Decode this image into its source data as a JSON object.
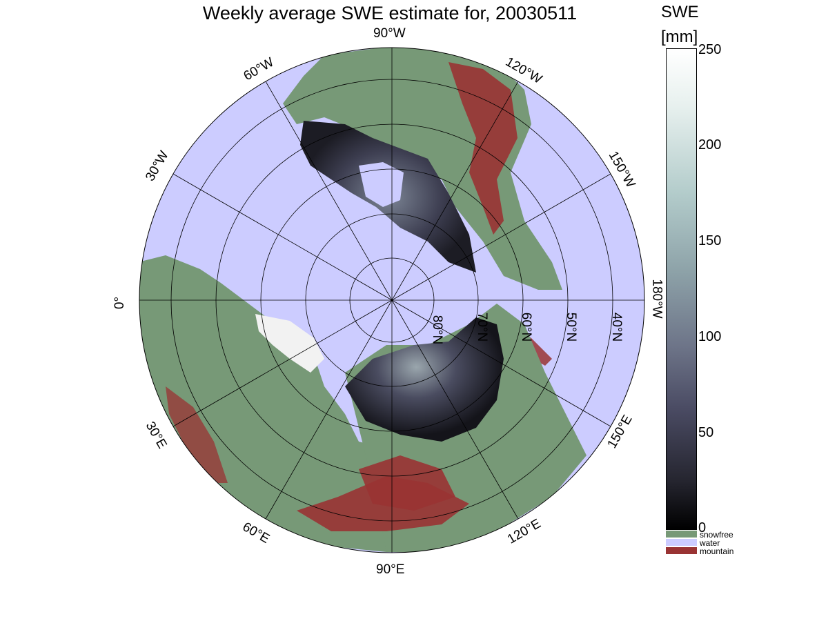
{
  "title": "Weekly average SWE estimate for, 20030511",
  "colorbar": {
    "title": "SWE",
    "unit": "[mm]",
    "ticks": [
      "250",
      "200",
      "150",
      "100",
      "50",
      "0"
    ],
    "range": [
      0,
      250
    ]
  },
  "legend": [
    {
      "label": "snowfree",
      "color": "#779977"
    },
    {
      "label": "water",
      "color": "#ccccff"
    },
    {
      "label": "mountain",
      "color": "#993333"
    }
  ],
  "longitude_labels": {
    "lon_90w": "90°W",
    "lon_120w": "120°W",
    "lon_150w": "150°W",
    "lon_180w": "180°W",
    "lon_150e": "150°E",
    "lon_120e": "120°E",
    "lon_90e": "90°E",
    "lon_60e": "60°E",
    "lon_30e": "30°E",
    "lon_0": "0°",
    "lon_30w": "30°W",
    "lon_60w": "60°W"
  },
  "latitude_labels": {
    "lat_80n": "80°N",
    "lat_70n": "70°N",
    "lat_60n": "60°N",
    "lat_50n": "50°N",
    "lat_40n": "40°N"
  },
  "colors": {
    "water": "#ccccff",
    "snowfree": "#779977",
    "mountain": "#993333",
    "snow_low": "#1a1a22",
    "snow_mid": "#4d4d66"
  }
}
